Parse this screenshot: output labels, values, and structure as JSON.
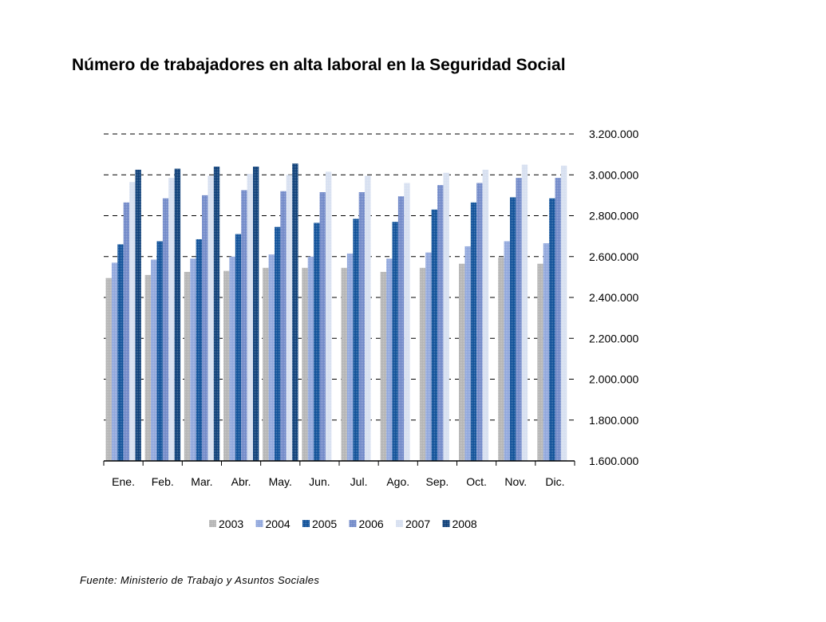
{
  "title": "Número de trabajadores en alta laboral en la Seguridad Social",
  "source": "Fuente: Ministerio de Trabajo y Asuntos Sociales",
  "chart_data": {
    "type": "bar",
    "categories": [
      "Ene.",
      "Feb.",
      "Mar.",
      "Abr.",
      "May.",
      "Jun.",
      "Jul.",
      "Ago.",
      "Sep.",
      "Oct.",
      "Nov.",
      "Dic."
    ],
    "ylim": [
      1600000,
      3200000
    ],
    "yticks": [
      "1.600.000",
      "1.800.000",
      "2.000.000",
      "2.200.000",
      "2.400.000",
      "2.600.000",
      "2.800.000",
      "3.000.000",
      "3.200.000"
    ],
    "ytick_values": [
      1600000,
      1800000,
      2000000,
      2200000,
      2400000,
      2600000,
      2800000,
      3000000,
      3200000
    ],
    "grid": "dashed-horizontal",
    "y_axis_position": "right",
    "legend_position": "bottom",
    "series": [
      {
        "name": "2003",
        "color": "#b4b4b4",
        "values": [
          2495000,
          2510000,
          2525000,
          2530000,
          2545000,
          2545000,
          2545000,
          2525000,
          2545000,
          2565000,
          2595000,
          2565000
        ]
      },
      {
        "name": "2004",
        "color": "#8fa6dc",
        "values": [
          2570000,
          2585000,
          2590000,
          2600000,
          2610000,
          2600000,
          2615000,
          2590000,
          2620000,
          2650000,
          2675000,
          2665000
        ]
      },
      {
        "name": "2005",
        "color": "#0d4f98",
        "values": [
          2660000,
          2675000,
          2685000,
          2710000,
          2745000,
          2765000,
          2785000,
          2770000,
          2830000,
          2865000,
          2890000,
          2885000
        ]
      },
      {
        "name": "2006",
        "color": "#7088c8",
        "values": [
          2865000,
          2885000,
          2900000,
          2925000,
          2920000,
          2915000,
          2915000,
          2895000,
          2950000,
          2960000,
          2985000,
          2985000
        ]
      },
      {
        "name": "2007",
        "color": "#d6dff0",
        "values": [
          2965000,
          2985000,
          2995000,
          3005000,
          3000000,
          3015000,
          2995000,
          2960000,
          3010000,
          3025000,
          3050000,
          3045000
        ]
      },
      {
        "name": "2008",
        "color": "#0b3d77",
        "values": [
          3025000,
          3030000,
          3040000,
          3040000,
          3055000,
          null,
          null,
          null,
          null,
          null,
          null,
          null
        ]
      }
    ]
  }
}
